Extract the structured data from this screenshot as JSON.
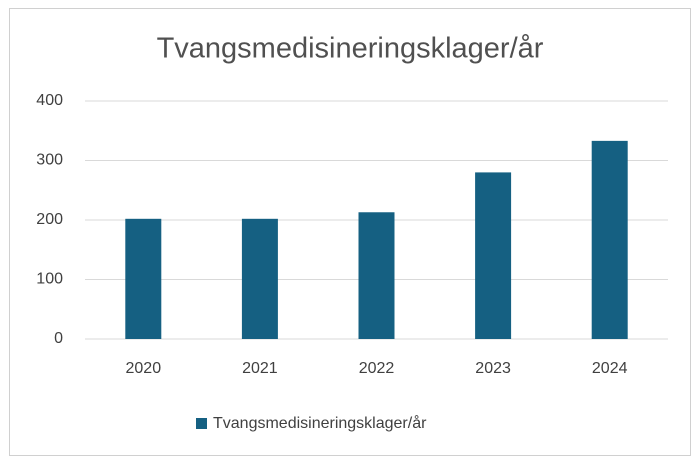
{
  "chart_data": {
    "type": "bar",
    "title": "Tvangsmedisineringsklager/år",
    "categories": [
      "2020",
      "2021",
      "2022",
      "2023",
      "2024"
    ],
    "series": [
      {
        "name": "Tvangsmedisineringsklager/år",
        "color": "#156082",
        "values": [
          202,
          202,
          213,
          280,
          333
        ]
      }
    ],
    "ylim": [
      0,
      400
    ],
    "yticks": [
      0,
      100,
      200,
      300,
      400
    ],
    "grid": true,
    "legend": "bottom"
  }
}
